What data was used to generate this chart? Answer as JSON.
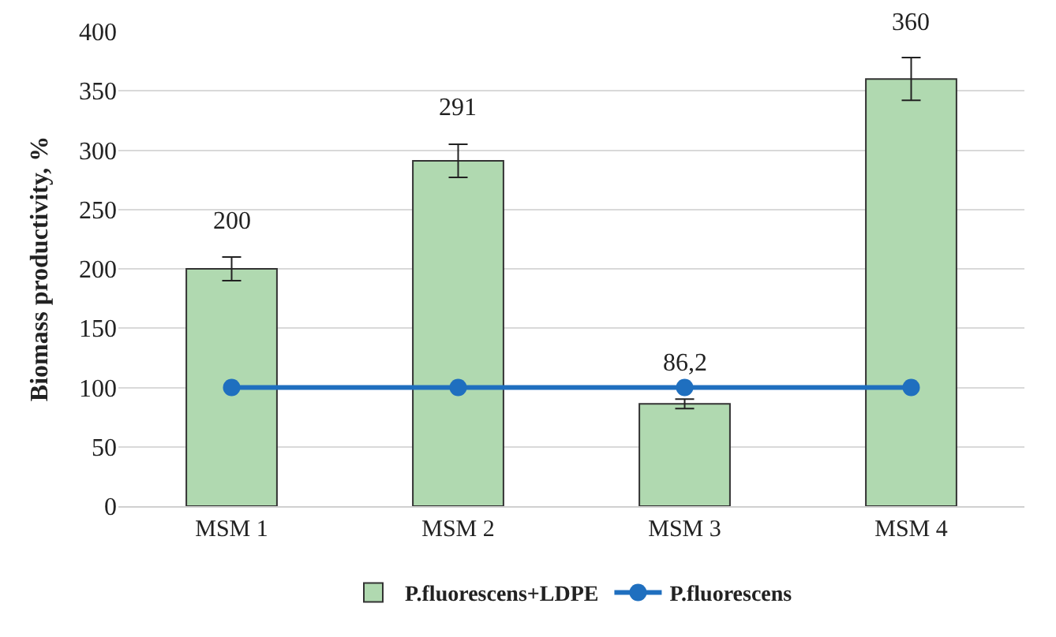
{
  "chart_data": {
    "type": "bar",
    "ylabel": "Biomass productivity, %",
    "categories": [
      "MSM 1",
      "MSM 2",
      "MSM 3",
      "MSM 4"
    ],
    "series": [
      {
        "name": "P.fluorescens+LDPE",
        "color": "#b0d9b0",
        "values": [
          200,
          291,
          86.2,
          360
        ],
        "errors": [
          10,
          14,
          4,
          18
        ],
        "value_labels": [
          "200",
          "291",
          "86,2",
          "360"
        ]
      },
      {
        "name": "P.fluorescens",
        "type": "line",
        "color": "#1f6fbf",
        "values": [
          100,
          100,
          100,
          100
        ],
        "marker": "circle",
        "line_style": "solid"
      }
    ],
    "ylim": [
      0,
      400
    ],
    "yticks": [
      0,
      50,
      100,
      150,
      200,
      250,
      300,
      350,
      400
    ],
    "grid": "y",
    "legend": "bottom"
  }
}
